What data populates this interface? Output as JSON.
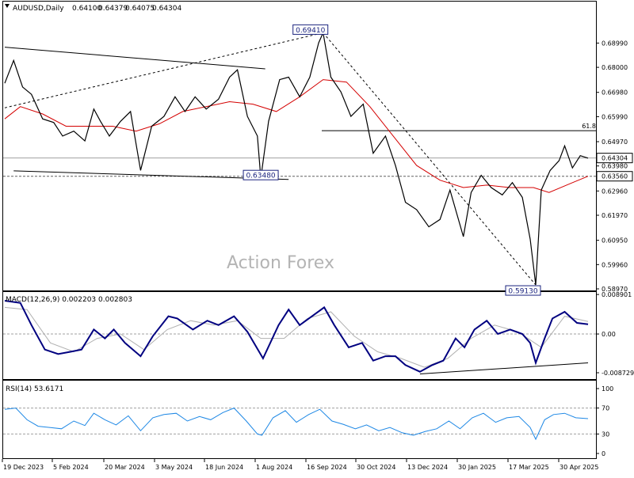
{
  "chart_data": {
    "type": "line",
    "title": "AUDUSD,Daily",
    "ohlc": {
      "open": "0.64100",
      "high": "0.64379",
      "low": "0.64075",
      "close": "0.64304"
    },
    "watermark": "Action Forex",
    "x_ticks": [
      "19 Dec 2023",
      "5 Feb 2024",
      "20 Mar 2024",
      "3 May 2024",
      "18 Jun 2024",
      "1 Aug 2024",
      "16 Sep 2024",
      "30 Oct 2024",
      "13 Dec 2024",
      "30 Jan 2025",
      "17 Mar 2025",
      "30 Apr 2025"
    ],
    "price_panel": {
      "y_ticks": [
        "0.68990",
        "0.68000",
        "0.66980",
        "0.65990",
        "0.64970",
        "0.63980",
        "0.62960",
        "0.61970",
        "0.60950",
        "0.59960",
        "0.58970"
      ],
      "ylim": [
        0.5897,
        0.701
      ],
      "close_series": [
        {
          "x": "2023-12-19",
          "y": 0.6735
        },
        {
          "x": "2023-12-27",
          "y": 0.6828
        },
        {
          "x": "2024-01-04",
          "y": 0.672
        },
        {
          "x": "2024-01-12",
          "y": 0.669
        },
        {
          "x": "2024-01-22",
          "y": 0.659
        },
        {
          "x": "2024-02-01",
          "y": 0.6575
        },
        {
          "x": "2024-02-09",
          "y": 0.652
        },
        {
          "x": "2024-02-19",
          "y": 0.654
        },
        {
          "x": "2024-02-29",
          "y": 0.65
        },
        {
          "x": "2024-03-08",
          "y": 0.663
        },
        {
          "x": "2024-03-14",
          "y": 0.658
        },
        {
          "x": "2024-03-22",
          "y": 0.652
        },
        {
          "x": "2024-04-01",
          "y": 0.658
        },
        {
          "x": "2024-04-10",
          "y": 0.662
        },
        {
          "x": "2024-04-19",
          "y": 0.638
        },
        {
          "x": "2024-04-29",
          "y": 0.656
        },
        {
          "x": "2024-05-10",
          "y": 0.66
        },
        {
          "x": "2024-05-20",
          "y": 0.668
        },
        {
          "x": "2024-05-29",
          "y": 0.662
        },
        {
          "x": "2024-06-07",
          "y": 0.668
        },
        {
          "x": "2024-06-17",
          "y": 0.663
        },
        {
          "x": "2024-06-28",
          "y": 0.667
        },
        {
          "x": "2024-07-08",
          "y": 0.676
        },
        {
          "x": "2024-07-15",
          "y": 0.679
        },
        {
          "x": "2024-07-24",
          "y": 0.66
        },
        {
          "x": "2024-08-02",
          "y": 0.652
        },
        {
          "x": "2024-08-05",
          "y": 0.6348
        },
        {
          "x": "2024-08-12",
          "y": 0.658
        },
        {
          "x": "2024-08-22",
          "y": 0.675
        },
        {
          "x": "2024-08-30",
          "y": 0.676
        },
        {
          "x": "2024-09-09",
          "y": 0.668
        },
        {
          "x": "2024-09-18",
          "y": 0.676
        },
        {
          "x": "2024-09-26",
          "y": 0.69
        },
        {
          "x": "2024-09-30",
          "y": 0.6941
        },
        {
          "x": "2024-10-07",
          "y": 0.676
        },
        {
          "x": "2024-10-16",
          "y": 0.67
        },
        {
          "x": "2024-10-25",
          "y": 0.66
        },
        {
          "x": "2024-11-05",
          "y": 0.665
        },
        {
          "x": "2024-11-14",
          "y": 0.645
        },
        {
          "x": "2024-11-25",
          "y": 0.652
        },
        {
          "x": "2024-12-04",
          "y": 0.64
        },
        {
          "x": "2024-12-13",
          "y": 0.625
        },
        {
          "x": "2024-12-23",
          "y": 0.622
        },
        {
          "x": "2025-01-03",
          "y": 0.615
        },
        {
          "x": "2025-01-13",
          "y": 0.618
        },
        {
          "x": "2025-01-22",
          "y": 0.63
        },
        {
          "x": "2025-02-03",
          "y": 0.611
        },
        {
          "x": "2025-02-10",
          "y": 0.629
        },
        {
          "x": "2025-02-19",
          "y": 0.636
        },
        {
          "x": "2025-02-28",
          "y": 0.631
        },
        {
          "x": "2025-03-10",
          "y": 0.628
        },
        {
          "x": "2025-03-19",
          "y": 0.633
        },
        {
          "x": "2025-03-28",
          "y": 0.627
        },
        {
          "x": "2025-04-04",
          "y": 0.61
        },
        {
          "x": "2025-04-09",
          "y": 0.5913
        },
        {
          "x": "2025-04-14",
          "y": 0.63
        },
        {
          "x": "2025-04-22",
          "y": 0.638
        },
        {
          "x": "2025-04-30",
          "y": 0.642
        },
        {
          "x": "2025-05-05",
          "y": 0.648
        },
        {
          "x": "2025-05-12",
          "y": 0.639
        },
        {
          "x": "2025-05-19",
          "y": 0.644
        },
        {
          "x": "2025-05-26",
          "y": 0.643
        }
      ],
      "ma_series": [
        {
          "x": "2023-12-19",
          "y": 0.659
        },
        {
          "x": "2024-01-02",
          "y": 0.664
        },
        {
          "x": "2024-01-22",
          "y": 0.661
        },
        {
          "x": "2024-02-12",
          "y": 0.656
        },
        {
          "x": "2024-03-04",
          "y": 0.656
        },
        {
          "x": "2024-03-25",
          "y": 0.656
        },
        {
          "x": "2024-04-15",
          "y": 0.654
        },
        {
          "x": "2024-05-06",
          "y": 0.657
        },
        {
          "x": "2024-05-27",
          "y": 0.662
        },
        {
          "x": "2024-06-17",
          "y": 0.664
        },
        {
          "x": "2024-07-08",
          "y": 0.666
        },
        {
          "x": "2024-07-29",
          "y": 0.665
        },
        {
          "x": "2024-08-19",
          "y": 0.662
        },
        {
          "x": "2024-09-09",
          "y": 0.668
        },
        {
          "x": "2024-09-30",
          "y": 0.675
        },
        {
          "x": "2024-10-21",
          "y": 0.674
        },
        {
          "x": "2024-11-11",
          "y": 0.664
        },
        {
          "x": "2024-12-02",
          "y": 0.652
        },
        {
          "x": "2024-12-23",
          "y": 0.64
        },
        {
          "x": "2025-01-13",
          "y": 0.634
        },
        {
          "x": "2025-02-03",
          "y": 0.631
        },
        {
          "x": "2025-02-24",
          "y": 0.632
        },
        {
          "x": "2025-03-17",
          "y": 0.631
        },
        {
          "x": "2025-04-07",
          "y": 0.631
        },
        {
          "x": "2025-04-21",
          "y": 0.629
        },
        {
          "x": "2025-05-12",
          "y": 0.633
        },
        {
          "x": "2025-05-26",
          "y": 0.6356
        }
      ],
      "current_price_label": "0.64304",
      "current_price": 0.64304,
      "level_label": "0.63560",
      "level_price": 0.6356,
      "fib_label": "61.8",
      "fib_price": 0.6542,
      "annotations": [
        {
          "text": "0.69410",
          "x": "2024-09-30",
          "y": 0.6941
        },
        {
          "text": "0.63480",
          "x": "2024-08-05",
          "y": 0.6348
        },
        {
          "text": "0.59130",
          "x": "2025-04-09",
          "y": 0.5913
        }
      ],
      "trendlines": [
        {
          "style": "solid",
          "points": [
            {
              "x": "2023-12-19",
              "y": 0.6882
            },
            {
              "x": "2024-08-09",
              "y": 0.6794
            }
          ]
        },
        {
          "style": "solid",
          "points": [
            {
              "x": "2023-12-27",
              "y": 0.6378
            },
            {
              "x": "2024-08-30",
              "y": 0.6343
            }
          ]
        },
        {
          "style": "dashed",
          "points": [
            {
              "x": "2023-12-19",
              "y": 0.6635
            },
            {
              "x": "2024-09-30",
              "y": 0.6941
            }
          ]
        },
        {
          "style": "dashed",
          "points": [
            {
              "x": "2024-09-30",
              "y": 0.6941
            },
            {
              "x": "2025-04-09",
              "y": 0.5913
            }
          ]
        }
      ]
    },
    "macd_panel": {
      "label": "MACD(12,26,9) 0.002203 0.002803",
      "y_ticks": [
        "0.008901",
        "0.00",
        "-0.008729"
      ],
      "ylim": [
        -0.0098,
        0.0091
      ],
      "macd_series": [
        {
          "x": "2023-12-19",
          "y": 0.0075
        },
        {
          "x": "2024-01-02",
          "y": 0.007
        },
        {
          "x": "2024-01-12",
          "y": 0.002
        },
        {
          "x": "2024-01-24",
          "y": -0.0035
        },
        {
          "x": "2024-02-05",
          "y": -0.0045
        },
        {
          "x": "2024-02-16",
          "y": -0.004
        },
        {
          "x": "2024-02-26",
          "y": -0.0035
        },
        {
          "x": "2024-03-08",
          "y": 0.001
        },
        {
          "x": "2024-03-18",
          "y": -0.001
        },
        {
          "x": "2024-03-26",
          "y": 0.001
        },
        {
          "x": "2024-04-05",
          "y": -0.002
        },
        {
          "x": "2024-04-19",
          "y": -0.005
        },
        {
          "x": "2024-04-30",
          "y": -0.0005
        },
        {
          "x": "2024-05-14",
          "y": 0.004
        },
        {
          "x": "2024-05-22",
          "y": 0.0035
        },
        {
          "x": "2024-06-05",
          "y": 0.001
        },
        {
          "x": "2024-06-18",
          "y": 0.003
        },
        {
          "x": "2024-06-28",
          "y": 0.002
        },
        {
          "x": "2024-07-12",
          "y": 0.004
        },
        {
          "x": "2024-07-24",
          "y": 0.0005
        },
        {
          "x": "2024-08-07",
          "y": -0.0055
        },
        {
          "x": "2024-08-21",
          "y": 0.002
        },
        {
          "x": "2024-08-30",
          "y": 0.0055
        },
        {
          "x": "2024-09-09",
          "y": 0.002
        },
        {
          "x": "2024-09-20",
          "y": 0.004
        },
        {
          "x": "2024-10-01",
          "y": 0.006
        },
        {
          "x": "2024-10-10",
          "y": 0.002
        },
        {
          "x": "2024-10-23",
          "y": -0.003
        },
        {
          "x": "2024-11-04",
          "y": -0.002
        },
        {
          "x": "2024-11-14",
          "y": -0.006
        },
        {
          "x": "2024-11-25",
          "y": -0.005
        },
        {
          "x": "2024-12-04",
          "y": -0.005
        },
        {
          "x": "2024-12-13",
          "y": -0.007
        },
        {
          "x": "2024-12-26",
          "y": -0.0085
        },
        {
          "x": "2025-01-06",
          "y": -0.007
        },
        {
          "x": "2025-01-16",
          "y": -0.006
        },
        {
          "x": "2025-01-27",
          "y": -0.001
        },
        {
          "x": "2025-02-04",
          "y": -0.003
        },
        {
          "x": "2025-02-13",
          "y": 0.001
        },
        {
          "x": "2025-02-24",
          "y": 0.003
        },
        {
          "x": "2025-03-06",
          "y": 0.0
        },
        {
          "x": "2025-03-17",
          "y": 0.001
        },
        {
          "x": "2025-03-28",
          "y": 0.0
        },
        {
          "x": "2025-04-04",
          "y": -0.002
        },
        {
          "x": "2025-04-09",
          "y": -0.0065
        },
        {
          "x": "2025-04-17",
          "y": -0.001
        },
        {
          "x": "2025-04-24",
          "y": 0.0035
        },
        {
          "x": "2025-05-05",
          "y": 0.005
        },
        {
          "x": "2025-05-16",
          "y": 0.0025
        },
        {
          "x": "2025-05-26",
          "y": 0.0022
        }
      ],
      "signal_series": [
        {
          "x": "2023-12-19",
          "y": 0.006
        },
        {
          "x": "2024-01-08",
          "y": 0.0055
        },
        {
          "x": "2024-01-29",
          "y": -0.002
        },
        {
          "x": "2024-02-19",
          "y": -0.004
        },
        {
          "x": "2024-03-11",
          "y": -0.001
        },
        {
          "x": "2024-04-01",
          "y": 0.0
        },
        {
          "x": "2024-04-22",
          "y": -0.0035
        },
        {
          "x": "2024-05-13",
          "y": 0.001
        },
        {
          "x": "2024-06-03",
          "y": 0.003
        },
        {
          "x": "2024-06-24",
          "y": 0.002
        },
        {
          "x": "2024-07-15",
          "y": 0.003
        },
        {
          "x": "2024-08-05",
          "y": -0.001
        },
        {
          "x": "2024-08-26",
          "y": -0.001
        },
        {
          "x": "2024-09-16",
          "y": 0.0035
        },
        {
          "x": "2024-10-07",
          "y": 0.005
        },
        {
          "x": "2024-10-28",
          "y": -0.0005
        },
        {
          "x": "2024-11-18",
          "y": -0.004
        },
        {
          "x": "2024-12-09",
          "y": -0.0055
        },
        {
          "x": "2024-12-30",
          "y": -0.0075
        },
        {
          "x": "2025-01-20",
          "y": -0.0055
        },
        {
          "x": "2025-02-10",
          "y": -0.001
        },
        {
          "x": "2025-03-03",
          "y": 0.002
        },
        {
          "x": "2025-03-24",
          "y": 0.0005
        },
        {
          "x": "2025-04-14",
          "y": -0.003
        },
        {
          "x": "2025-05-05",
          "y": 0.004
        },
        {
          "x": "2025-05-26",
          "y": 0.0028
        }
      ],
      "trendline": {
        "points": [
          {
            "x": "2024-12-26",
            "y": -0.009
          },
          {
            "x": "2025-05-26",
            "y": -0.0065
          }
        ]
      }
    },
    "rsi_panel": {
      "label": "RSI(14) 53.6171",
      "y_ticks": [
        "100",
        "70",
        "30",
        "0"
      ],
      "ylim": [
        0,
        100
      ],
      "rsi_series": [
        {
          "x": "2023-12-19",
          "y": 68
        },
        {
          "x": "2023-12-29",
          "y": 70
        },
        {
          "x": "2024-01-08",
          "y": 52
        },
        {
          "x": "2024-01-18",
          "y": 42
        },
        {
          "x": "2024-01-29",
          "y": 40
        },
        {
          "x": "2024-02-08",
          "y": 38
        },
        {
          "x": "2024-02-19",
          "y": 50
        },
        {
          "x": "2024-02-29",
          "y": 43
        },
        {
          "x": "2024-03-08",
          "y": 62
        },
        {
          "x": "2024-03-18",
          "y": 52
        },
        {
          "x": "2024-03-28",
          "y": 44
        },
        {
          "x": "2024-04-08",
          "y": 58
        },
        {
          "x": "2024-04-19",
          "y": 35
        },
        {
          "x": "2024-04-30",
          "y": 55
        },
        {
          "x": "2024-05-10",
          "y": 60
        },
        {
          "x": "2024-05-21",
          "y": 62
        },
        {
          "x": "2024-05-31",
          "y": 50
        },
        {
          "x": "2024-06-11",
          "y": 57
        },
        {
          "x": "2024-06-21",
          "y": 52
        },
        {
          "x": "2024-07-02",
          "y": 63
        },
        {
          "x": "2024-07-12",
          "y": 70
        },
        {
          "x": "2024-07-23",
          "y": 50
        },
        {
          "x": "2024-08-02",
          "y": 30
        },
        {
          "x": "2024-08-06",
          "y": 28
        },
        {
          "x": "2024-08-16",
          "y": 55
        },
        {
          "x": "2024-08-27",
          "y": 66
        },
        {
          "x": "2024-09-06",
          "y": 48
        },
        {
          "x": "2024-09-17",
          "y": 60
        },
        {
          "x": "2024-09-27",
          "y": 68
        },
        {
          "x": "2024-10-08",
          "y": 50
        },
        {
          "x": "2024-10-18",
          "y": 45
        },
        {
          "x": "2024-10-29",
          "y": 38
        },
        {
          "x": "2024-11-08",
          "y": 44
        },
        {
          "x": "2024-11-19",
          "y": 35
        },
        {
          "x": "2024-11-29",
          "y": 40
        },
        {
          "x": "2024-12-10",
          "y": 32
        },
        {
          "x": "2024-12-20",
          "y": 28
        },
        {
          "x": "2024-12-31",
          "y": 34
        },
        {
          "x": "2025-01-10",
          "y": 38
        },
        {
          "x": "2025-01-21",
          "y": 50
        },
        {
          "x": "2025-01-31",
          "y": 38
        },
        {
          "x": "2025-02-11",
          "y": 55
        },
        {
          "x": "2025-02-21",
          "y": 62
        },
        {
          "x": "2025-03-04",
          "y": 48
        },
        {
          "x": "2025-03-14",
          "y": 55
        },
        {
          "x": "2025-03-25",
          "y": 57
        },
        {
          "x": "2025-04-04",
          "y": 40
        },
        {
          "x": "2025-04-09",
          "y": 22
        },
        {
          "x": "2025-04-17",
          "y": 52
        },
        {
          "x": "2025-04-25",
          "y": 60
        },
        {
          "x": "2025-05-05",
          "y": 62
        },
        {
          "x": "2025-05-15",
          "y": 55
        },
        {
          "x": "2025-05-26",
          "y": 53.6
        }
      ]
    }
  }
}
